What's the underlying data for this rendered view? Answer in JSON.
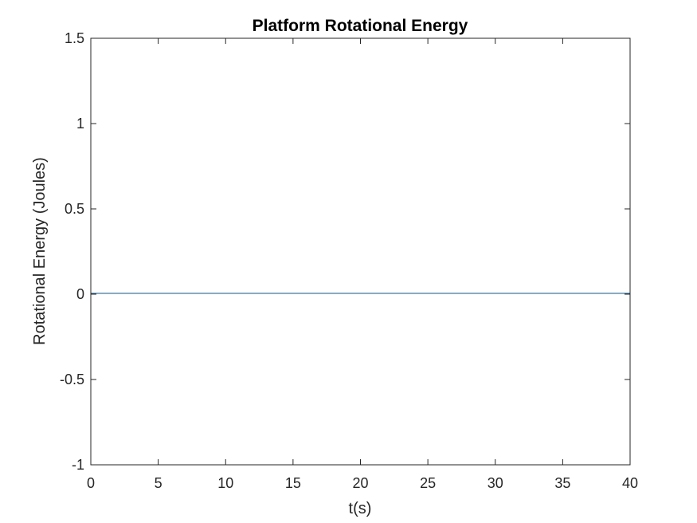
{
  "chart_data": {
    "type": "line",
    "title": "Platform Rotational Energy",
    "xlabel": "t(s)",
    "ylabel": "Rotational Energy (Joules)",
    "xlim": [
      0,
      40
    ],
    "ylim": [
      -1,
      1.5
    ],
    "x_ticks": [
      0,
      5,
      10,
      15,
      20,
      25,
      30,
      35,
      40
    ],
    "y_ticks": [
      -1,
      -0.5,
      0,
      0.5,
      1,
      1.5
    ],
    "x_tick_labels": [
      "0",
      "5",
      "10",
      "15",
      "20",
      "25",
      "30",
      "35",
      "40"
    ],
    "y_tick_labels": [
      "-1",
      "-0.5",
      "0",
      "0.5",
      "1",
      "1.5"
    ],
    "grid": false,
    "series": [
      {
        "color": "#0072BD",
        "x": [
          0,
          40
        ],
        "y": [
          0.005,
          0.005
        ]
      }
    ]
  }
}
